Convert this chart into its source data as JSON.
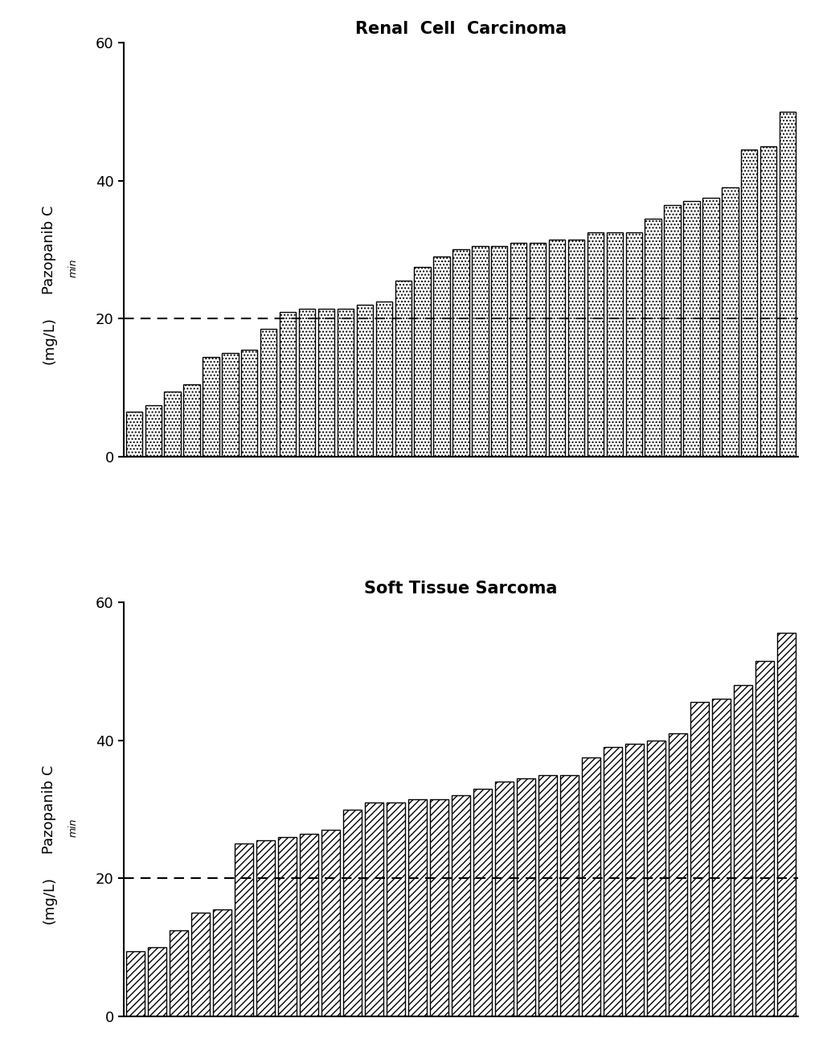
{
  "title1": "Renal  Cell  Carcinoma",
  "title2": "Soft Tissue Sarcoma",
  "dashed_line": 20,
  "ylim": [
    0,
    60
  ],
  "yticks": [
    0,
    20,
    40,
    60
  ],
  "rcc_values": [
    6.5,
    7.5,
    9.5,
    10.5,
    14.5,
    15.0,
    15.5,
    18.5,
    21.0,
    21.5,
    21.5,
    21.5,
    22.0,
    22.5,
    25.5,
    27.5,
    29.0,
    30.0,
    30.5,
    30.5,
    31.0,
    31.0,
    31.5,
    31.5,
    32.5,
    32.5,
    32.5,
    34.5,
    36.5,
    37.0,
    37.5,
    39.0,
    44.5,
    45.0,
    50.0
  ],
  "sts_values": [
    9.5,
    10.0,
    12.5,
    15.0,
    15.5,
    25.0,
    25.5,
    26.0,
    26.5,
    27.0,
    30.0,
    31.0,
    31.0,
    31.5,
    31.5,
    32.0,
    33.0,
    34.0,
    34.5,
    35.0,
    35.0,
    37.5,
    39.0,
    39.5,
    40.0,
    41.0,
    45.5,
    46.0,
    48.0,
    51.5,
    55.5
  ],
  "bar_edgecolor": "#000000",
  "hatch1": "....",
  "hatch2": "////",
  "title_fontsize": 15,
  "ylabel_fontsize": 13,
  "tick_fontsize": 13
}
